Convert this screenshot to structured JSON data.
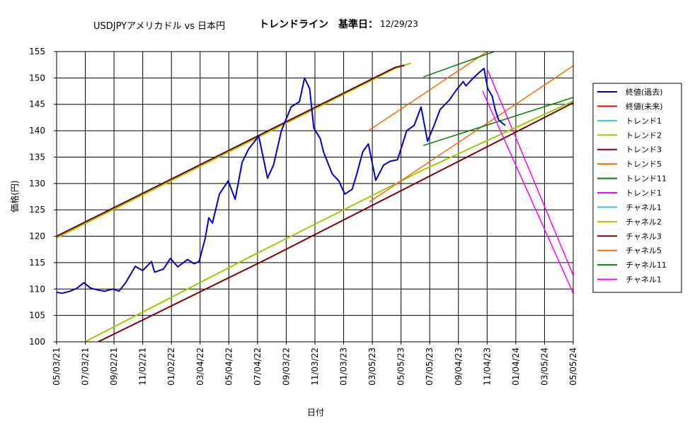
{
  "title_main": "USDJPYアメリカドル vs 日本円",
  "title_trend": "トレンドライン　基準日：",
  "title_date": "12/29/23",
  "chart_data": {
    "type": "line",
    "title": "USDJPYアメリカドル vs 日本円　トレンドライン　基準日：12/29/23",
    "xlabel": "日付",
    "ylabel": "価格(円)",
    "ylim": [
      100,
      155
    ],
    "yticks": [
      100,
      105,
      110,
      115,
      120,
      125,
      130,
      135,
      140,
      145,
      150,
      155
    ],
    "xlim": [
      "2021-05-03",
      "2024-05-24"
    ],
    "xtick_labels": [
      "05/03/21",
      "07/03/21",
      "09/02/21",
      "11/02/21",
      "01/02/22",
      "03/04/22",
      "05/04/22",
      "07/04/22",
      "09/03/22",
      "11/03/22",
      "01/03/23",
      "03/05/23",
      "05/05/23",
      "07/05/23",
      "09/04/23",
      "11/04/23",
      "01/04/24",
      "03/05/24",
      "05/05/24"
    ],
    "grid": true,
    "legend_position": "right",
    "series": [
      {
        "name": "終値(過去)",
        "color": "#0000cc",
        "width": 2,
        "points": [
          [
            "2021-05-03",
            109.4
          ],
          [
            "2021-05-15",
            109.2
          ],
          [
            "2021-06-01",
            109.6
          ],
          [
            "2021-06-15",
            110.1
          ],
          [
            "2021-07-01",
            111.2
          ],
          [
            "2021-07-15",
            110.2
          ],
          [
            "2021-08-01",
            109.8
          ],
          [
            "2021-08-15",
            109.6
          ],
          [
            "2021-09-01",
            110.0
          ],
          [
            "2021-09-15",
            109.6
          ],
          [
            "2021-09-30",
            111.3
          ],
          [
            "2021-10-20",
            114.3
          ],
          [
            "2021-11-05",
            113.5
          ],
          [
            "2021-11-24",
            115.2
          ],
          [
            "2021-12-01",
            113.2
          ],
          [
            "2021-12-20",
            113.8
          ],
          [
            "2022-01-04",
            115.8
          ],
          [
            "2022-01-20",
            114.2
          ],
          [
            "2022-02-10",
            115.6
          ],
          [
            "2022-02-24",
            114.8
          ],
          [
            "2022-03-07",
            115.2
          ],
          [
            "2022-03-20",
            119.5
          ],
          [
            "2022-03-28",
            123.5
          ],
          [
            "2022-04-05",
            122.5
          ],
          [
            "2022-04-20",
            128.0
          ],
          [
            "2022-05-09",
            130.5
          ],
          [
            "2022-05-24",
            127.0
          ],
          [
            "2022-06-08",
            134.0
          ],
          [
            "2022-06-22",
            136.5
          ],
          [
            "2022-07-14",
            139.0
          ],
          [
            "2022-08-02",
            131.0
          ],
          [
            "2022-08-15",
            133.5
          ],
          [
            "2022-09-01",
            140.0
          ],
          [
            "2022-09-22",
            144.5
          ],
          [
            "2022-10-10",
            145.5
          ],
          [
            "2022-10-21",
            150.0
          ],
          [
            "2022-11-01",
            148.0
          ],
          [
            "2022-11-10",
            140.5
          ],
          [
            "2022-11-24",
            138.5
          ],
          [
            "2022-12-01",
            136.0
          ],
          [
            "2022-12-20",
            131.8
          ],
          [
            "2023-01-03",
            130.5
          ],
          [
            "2023-01-16",
            128.0
          ],
          [
            "2023-02-01",
            128.9
          ],
          [
            "2023-02-10",
            131.5
          ],
          [
            "2023-02-24",
            136.0
          ],
          [
            "2023-03-08",
            137.5
          ],
          [
            "2023-03-24",
            130.6
          ],
          [
            "2023-04-10",
            133.5
          ],
          [
            "2023-04-24",
            134.2
          ],
          [
            "2023-05-10",
            134.5
          ],
          [
            "2023-05-30",
            140.0
          ],
          [
            "2023-06-15",
            141.0
          ],
          [
            "2023-06-30",
            144.5
          ],
          [
            "2023-07-14",
            138.0
          ],
          [
            "2023-07-28",
            141.0
          ],
          [
            "2023-08-10",
            144.0
          ],
          [
            "2023-08-30",
            145.8
          ],
          [
            "2023-09-15",
            147.8
          ],
          [
            "2023-09-29",
            149.3
          ],
          [
            "2023-10-05",
            148.5
          ],
          [
            "2023-10-20",
            149.9
          ],
          [
            "2023-11-01",
            150.9
          ],
          [
            "2023-11-13",
            151.8
          ],
          [
            "2023-11-21",
            148.0
          ],
          [
            "2023-12-01",
            146.5
          ],
          [
            "2023-12-07",
            144.0
          ],
          [
            "2023-12-15",
            142.0
          ],
          [
            "2023-12-29",
            141.0
          ]
        ]
      },
      {
        "name": "終値(未来)",
        "color": "#ff0000",
        "width": 1,
        "points": []
      },
      {
        "name": "トレンド1",
        "color": "#33cccc",
        "width": 1,
        "points": []
      },
      {
        "name": "トレンド2",
        "color": "#99cc00",
        "width": 2,
        "points": [
          [
            "2021-05-03",
            119.7
          ],
          [
            "2022-05-04",
            135.7
          ],
          [
            "2023-05-05",
            151.8
          ],
          [
            "2023-06-08",
            152.8
          ]
        ]
      },
      {
        "name": "トレンド3",
        "color": "#800000",
        "width": 2,
        "points": [
          [
            "2021-05-03",
            120.0
          ],
          [
            "2022-05-04",
            136.0
          ],
          [
            "2023-05-05",
            152.0
          ],
          [
            "2023-05-25",
            152.4
          ]
        ]
      },
      {
        "name": "トレンド5",
        "color": "#ff6600",
        "width": 1.5,
        "points": [
          [
            "2023-03-10",
            140.1
          ],
          [
            "2023-11-20",
            155.0
          ]
        ]
      },
      {
        "name": "トレンド11",
        "color": "#008000",
        "width": 1.5,
        "points": [
          [
            "2023-07-05",
            150.2
          ],
          [
            "2023-12-05",
            155.0
          ]
        ]
      },
      {
        "name": "トレンド1",
        "color": "#ff00ff",
        "width": 1.5,
        "points": [
          [
            "2023-11-21",
            151.5
          ],
          [
            "2024-05-24",
            112.6
          ]
        ]
      },
      {
        "name": "チャネル1",
        "color": "#33cccc",
        "width": 1,
        "points": []
      },
      {
        "name": "チャネル2",
        "color": "#99cc00",
        "width": 2,
        "points": [
          [
            "2021-07-03",
            100.0
          ],
          [
            "2022-07-04",
            116.5
          ],
          [
            "2023-07-05",
            132.6
          ],
          [
            "2024-05-24",
            145.6
          ]
        ]
      },
      {
        "name": "チャネル3",
        "color": "#800000",
        "width": 2,
        "points": [
          [
            "2021-08-01",
            100.0
          ],
          [
            "2022-08-01",
            115.7
          ],
          [
            "2023-08-01",
            132.0
          ],
          [
            "2024-05-24",
            145.3
          ]
        ]
      },
      {
        "name": "チャネル5",
        "color": "#ff6600",
        "width": 1.5,
        "points": [
          [
            "2023-03-10",
            126.5
          ],
          [
            "2024-05-24",
            152.3
          ]
        ]
      },
      {
        "name": "チャネル11",
        "color": "#008000",
        "width": 1.5,
        "points": [
          [
            "2023-07-05",
            137.2
          ],
          [
            "2024-05-24",
            146.3
          ]
        ]
      },
      {
        "name": "チャネル1",
        "color": "#ff00ff",
        "width": 1.5,
        "points": [
          [
            "2023-11-10",
            147.5
          ],
          [
            "2024-05-24",
            109.2
          ]
        ]
      }
    ]
  }
}
